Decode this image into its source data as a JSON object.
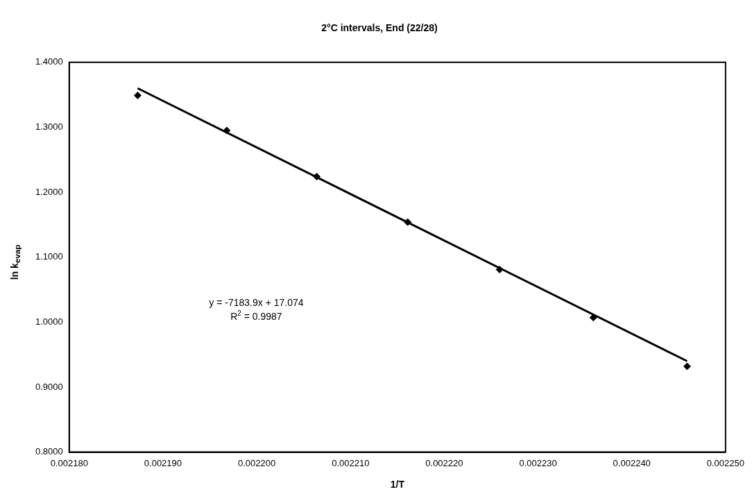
{
  "chart_data": {
    "type": "scatter",
    "title": "2°C intervals, End (22/28)",
    "xlabel": "1/T",
    "ylabel": "ln k$_{evap}$",
    "xlim": [
      0.00218,
      0.00225
    ],
    "xticks": [
      {
        "value": 0.00218,
        "label": "0.002180"
      },
      {
        "value": 0.00219,
        "label": "0.002190"
      },
      {
        "value": 0.0022,
        "label": "0.002200"
      },
      {
        "value": 0.00221,
        "label": "0.002210"
      },
      {
        "value": 0.00222,
        "label": "0.002220"
      },
      {
        "value": 0.00223,
        "label": "0.002230"
      },
      {
        "value": 0.00224,
        "label": "0.002240"
      },
      {
        "value": 0.00225,
        "label": "0.002250"
      }
    ],
    "ylim": [
      0.8,
      1.4
    ],
    "yticks": [
      {
        "value": 0.8,
        "label": "0.8000"
      },
      {
        "value": 0.9,
        "label": "0.9000"
      },
      {
        "value": 1.0,
        "label": "1.0000"
      },
      {
        "value": 1.1,
        "label": "1.1000"
      },
      {
        "value": 1.2,
        "label": "1.2000"
      },
      {
        "value": 1.3,
        "label": "1.3000"
      },
      {
        "value": 1.4,
        "label": "1.4000"
      }
    ],
    "series": [
      {
        "color": "#000000",
        "marker": "diamond",
        "x": [
          0.0021873,
          0.0021968,
          0.0022064,
          0.0022161,
          0.0022259,
          0.0022359,
          0.0022459
        ],
        "values": [
          1.349,
          1.295,
          1.224,
          1.154,
          1.081,
          1.007,
          0.932
        ]
      },
      {
        "type": "line",
        "color": "#000000",
        "marker": "none",
        "x": [
          0.0021873,
          0.0022459
        ],
        "values": [
          1.36,
          0.94
        ]
      }
    ],
    "grid": false,
    "legend": false,
    "annotations": [
      "y = -7183.9x + 17.074",
      "R$^{2}$ = 0.9987"
    ]
  }
}
